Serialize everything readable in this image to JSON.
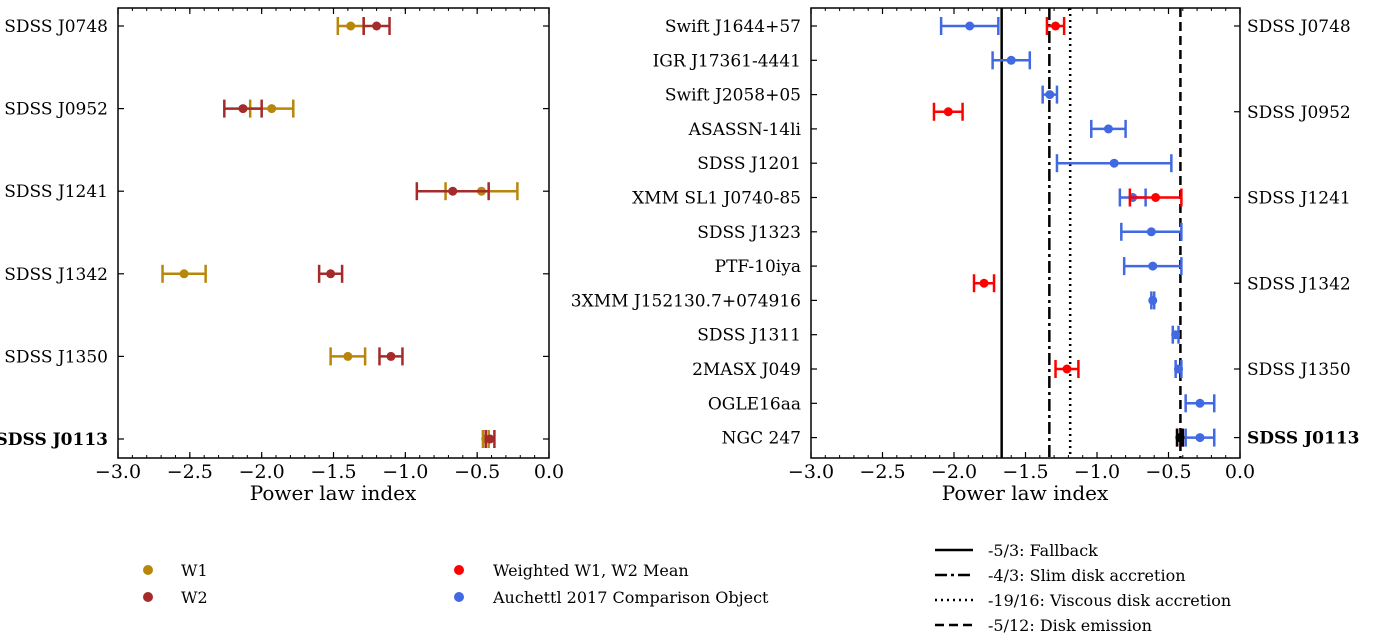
{
  "chart_data": [
    {
      "type": "scatter",
      "xlabel": "Power law index",
      "xlim": [
        -3.0,
        0.0
      ],
      "x_ticks": [
        "−3.0",
        "−2.5",
        "−2.0",
        "−1.5",
        "−1.0",
        "−0.5",
        "0.0"
      ],
      "categories": [
        "SDSS J0748",
        "SDSS J0952",
        "SDSS J1241",
        "SDSS J1342",
        "SDSS J1350",
        "SDSS J0113"
      ],
      "bold_category": "SDSS J0113",
      "series": [
        {
          "name": "W1",
          "color": "#b8860b",
          "values": [
            -1.38,
            -1.93,
            -0.47,
            -2.54,
            -1.4,
            -0.44
          ],
          "errors": [
            0.09,
            0.15,
            0.25,
            0.15,
            0.12,
            0.02
          ]
        },
        {
          "name": "W2",
          "color": "#a52a2a",
          "values": [
            -1.2,
            -2.13,
            -0.67,
            -1.52,
            -1.1,
            -0.41
          ],
          "errors": [
            0.09,
            0.13,
            0.25,
            0.08,
            0.08,
            0.03
          ]
        }
      ]
    },
    {
      "type": "scatter",
      "xlabel": "Power law index",
      "xlim": [
        -3.0,
        0.0
      ],
      "x_ticks": [
        "−3.0",
        "−2.5",
        "−2.0",
        "−1.5",
        "−1.0",
        "−0.5",
        "0.0"
      ],
      "categories": [
        "Swift J1644+57",
        "IGR J17361-4441",
        "Swift J2058+05",
        "ASASSN-14li",
        "SDSS J1201",
        "XMM SL1 J0740-85",
        "SDSS J1323",
        "PTF-10iya",
        "3XMM J152130.7+074916",
        "SDSS J1311",
        "2MASX J049",
        "OGLE16aa",
        "NGC 247"
      ],
      "right_labels": [
        {
          "text": "SDSS J0748",
          "row": 0,
          "bold": false
        },
        {
          "text": "SDSS J0952",
          "row": 2.5,
          "bold": false
        },
        {
          "text": "SDSS J1241",
          "row": 5,
          "bold": false
        },
        {
          "text": "SDSS J1342",
          "row": 7.5,
          "bold": false
        },
        {
          "text": "SDSS J1350",
          "row": 10,
          "bold": false
        },
        {
          "text": "SDSS J0113",
          "row": 12,
          "bold": true
        }
      ],
      "series": [
        {
          "name": "Auchettl 2017 Comparison Object",
          "color": "#4169e1",
          "points": [
            {
              "row": 0,
              "value": -1.89,
              "error": 0.2
            },
            {
              "row": 1,
              "value": -1.6,
              "error": 0.13
            },
            {
              "row": 2,
              "value": -1.33,
              "error": 0.05
            },
            {
              "row": 3,
              "value": -0.92,
              "error": 0.12
            },
            {
              "row": 4,
              "value": -0.88,
              "error": 0.4
            },
            {
              "row": 5,
              "value": -0.75,
              "error": 0.09
            },
            {
              "row": 6,
              "value": -0.62,
              "error": 0.21
            },
            {
              "row": 7,
              "value": -0.61,
              "error": 0.2
            },
            {
              "row": 8,
              "value": -0.61,
              "error": 0.01
            },
            {
              "row": 9,
              "value": -0.45,
              "error": 0.02
            },
            {
              "row": 10,
              "value": -0.43,
              "error": 0.02
            },
            {
              "row": 11,
              "value": -0.28,
              "error": 0.1
            },
            {
              "row": 12,
              "value": -0.28,
              "error": 0.1
            }
          ]
        },
        {
          "name": "Weighted W1, W2 Mean",
          "color": "#ff0000",
          "points": [
            {
              "row": 0,
              "value": -1.29,
              "error": 0.06
            },
            {
              "row": 2.5,
              "value": -2.04,
              "error": 0.1
            },
            {
              "row": 5,
              "value": -0.59,
              "error": 0.18
            },
            {
              "row": 7.5,
              "value": -1.79,
              "error": 0.07
            },
            {
              "row": 10,
              "value": -1.21,
              "error": 0.08
            },
            {
              "row": 12,
              "value": -0.42,
              "error": 0.02
            }
          ]
        }
      ],
      "reference_lines": [
        {
          "label": "-5/3: Fallback",
          "value": -1.6667,
          "style": "solid"
        },
        {
          "label": "-4/3: Slim disk accretion",
          "value": -1.3333,
          "style": "dashdot"
        },
        {
          "label": "-19/16: Viscous disk accretion",
          "value": -1.1875,
          "style": "dotted"
        },
        {
          "label": "-5/12: Disk emission",
          "value": -0.4167,
          "style": "dashed"
        }
      ]
    }
  ],
  "legend": {
    "w_items": [
      {
        "label": "W1",
        "color": "#b8860b"
      },
      {
        "label": "W2",
        "color": "#a52a2a"
      }
    ],
    "points_items": [
      {
        "label": "Weighted W1, W2 Mean",
        "color": "#ff0000"
      },
      {
        "label": "Auchettl 2017 Comparison Object",
        "color": "#4169e1"
      }
    ],
    "line_items": [
      {
        "label": "-5/3: Fallback",
        "style": "solid"
      },
      {
        "label": "-4/3: Slim disk accretion",
        "style": "dashdot"
      },
      {
        "label": "-19/16: Viscous disk accretion",
        "style": "dotted"
      },
      {
        "label": "-5/12: Disk emission",
        "style": "dashed"
      }
    ]
  }
}
